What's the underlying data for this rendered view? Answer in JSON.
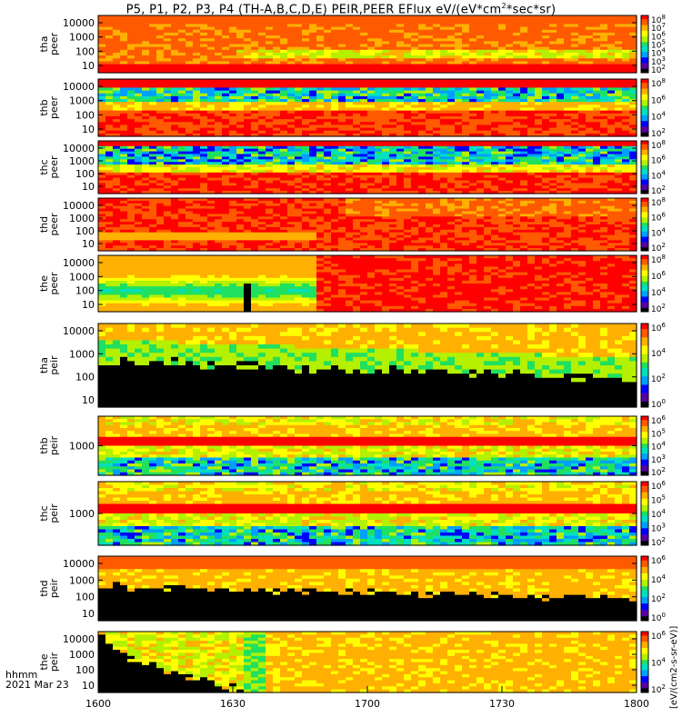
{
  "title": {
    "prefix": "P5, P1, P2, P3, P4 (TH-A,B,C,D,E) PEIR,PEER EFlux eV/(eV*cm",
    "sup": "2",
    "suffix": "*sec*sr)"
  },
  "footer": {
    "time_label": "hhmm",
    "date_label": "2021 Mar 23"
  },
  "colorbar_unit": "[eV/(cm2-s-sr-eV)]",
  "chart_data": {
    "type": "heatmap",
    "x_ticks": [
      "1600",
      "1630",
      "1700",
      "1730",
      "1800"
    ],
    "x_range": [
      "16:00",
      "18:00"
    ],
    "colormap": [
      "#000000",
      "#5a00a0",
      "#0000ff",
      "#00a0ff",
      "#00e0c0",
      "#20e060",
      "#b4f000",
      "#ffff00",
      "#ffb000",
      "#ff5a00",
      "#ff0000"
    ],
    "panels": [
      {
        "name": "tha\npeer",
        "yticks": [
          "10000",
          "1000",
          "100",
          "10"
        ],
        "cbticks": [
          "10^8",
          "10^7",
          "10^6",
          "10^5",
          "10^4",
          "10^3",
          "10^2"
        ],
        "texture": "electron_a"
      },
      {
        "name": "thb\npeer",
        "yticks": [
          "10000",
          "1000",
          "100",
          "10"
        ],
        "cbticks": [
          "10^8",
          "10^6",
          "10^4",
          "10^2"
        ],
        "texture": "electron_bc"
      },
      {
        "name": "thc\npeer",
        "yticks": [
          "10000",
          "1000",
          "100",
          "10"
        ],
        "cbticks": [
          "10^8",
          "10^6",
          "10^4",
          "10^2"
        ],
        "texture": "electron_bc2"
      },
      {
        "name": "thd\npeer",
        "yticks": [
          "10000",
          "1000",
          "100",
          "10"
        ],
        "cbticks": [
          "10^8",
          "10^6",
          "10^4",
          "10^2"
        ],
        "texture": "electron_d"
      },
      {
        "name": "the\npeer",
        "yticks": [
          "10000",
          "1000",
          "100",
          "10"
        ],
        "cbticks": [
          "10^8",
          "10^6",
          "10^4",
          "10^2"
        ],
        "texture": "electron_e"
      },
      {
        "name": "tha\npeir",
        "yticks": [
          "10000",
          "1000",
          "100",
          "10"
        ],
        "cbticks": [
          "10^6",
          "10^4",
          "10^2",
          "10^0"
        ],
        "texture": "ion_a"
      },
      {
        "name": "thb\npeir",
        "yticks": [
          "1000"
        ],
        "cbticks": [
          "10^6",
          "10^5",
          "10^4",
          "10^3",
          "10^2"
        ],
        "texture": "ion_bc"
      },
      {
        "name": "thc\npeir",
        "yticks": [
          "1000"
        ],
        "cbticks": [
          "10^6",
          "10^5",
          "10^4",
          "10^3",
          "10^2"
        ],
        "texture": "ion_bc"
      },
      {
        "name": "thd\npeir",
        "yticks": [
          "10000",
          "1000",
          "100",
          "10"
        ],
        "cbticks": [
          "10^6",
          "10^4",
          "10^2",
          "10^0"
        ],
        "texture": "ion_d"
      },
      {
        "name": "the\npeir",
        "yticks": [
          "10000",
          "1000",
          "100",
          "10"
        ],
        "cbticks": [
          "10^6",
          "10^4",
          "10^2"
        ],
        "texture": "ion_e"
      }
    ]
  }
}
